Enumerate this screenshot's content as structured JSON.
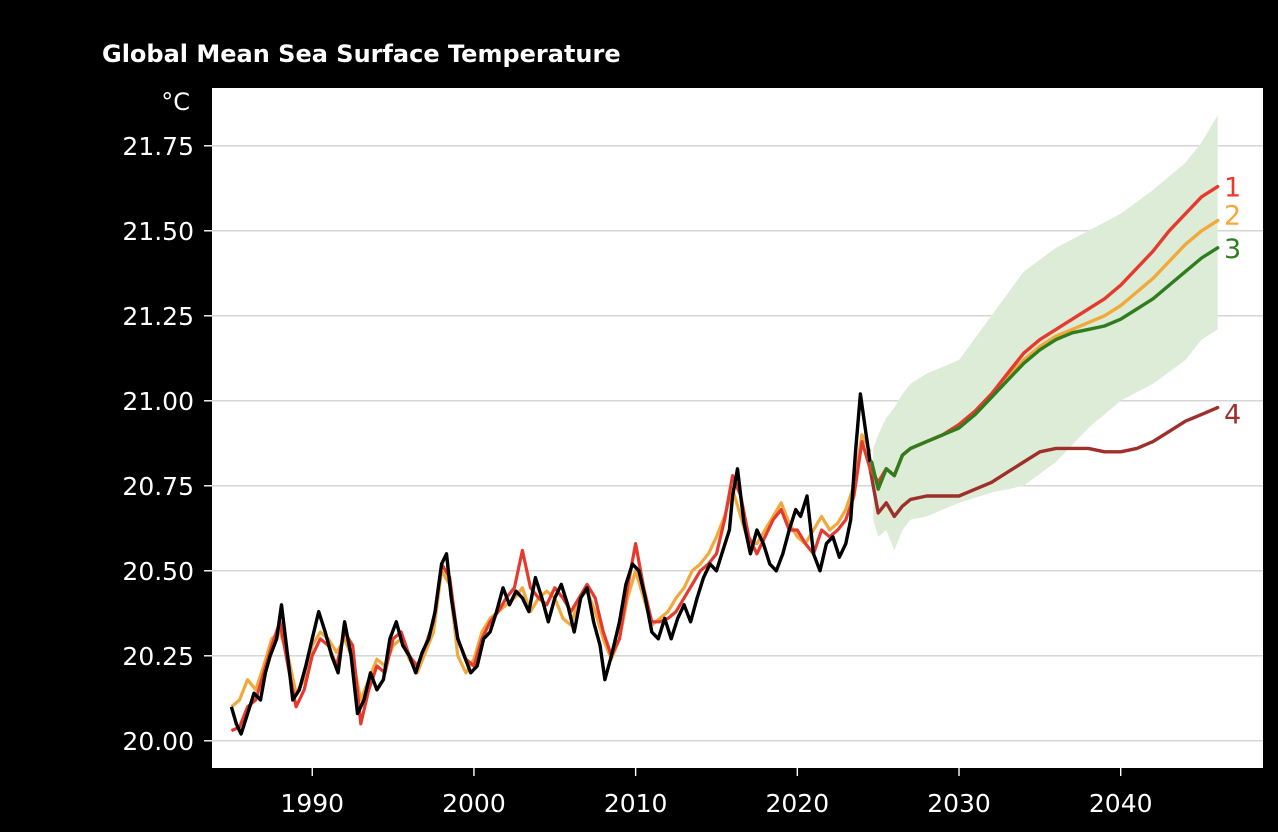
{
  "chart_data": {
    "type": "line",
    "title": "Global Mean Sea Surface Temperature",
    "ylabel": "°C",
    "xlabel": "",
    "xlim": [
      1983.8,
      2048.8
    ],
    "ylim": [
      19.92,
      21.92
    ],
    "grid": "horizontal",
    "legend": "end-of-line numeric labels",
    "x_ticks": [
      1990,
      2000,
      2010,
      2020,
      2030,
      2040
    ],
    "x_tick_labels": [
      "1990",
      "2000",
      "2010",
      "2020",
      "2030",
      "2040"
    ],
    "y_ticks": [
      20.0,
      20.25,
      20.5,
      20.75,
      21.0,
      21.25,
      21.5,
      21.75
    ],
    "y_tick_labels": [
      "20.00",
      "20.25",
      "20.50",
      "20.75",
      "21.00",
      "21.25",
      "21.50",
      "21.75"
    ],
    "colors": {
      "background": "#000000",
      "plot_area": "#ffffff",
      "grid": "#c8c8c8",
      "band": "#dcecd7",
      "observed": "#000000",
      "series_1": "#e63a2e",
      "series_2": "#f2a93b",
      "series_3": "#2f7d1f",
      "series_4": "#9e2f2a"
    },
    "band": {
      "x": [
        2024.7,
        2025.0,
        2025.5,
        2026.0,
        2026.5,
        2027,
        2028,
        2030,
        2032,
        2034,
        2036,
        2038,
        2040,
        2042,
        2044,
        2045,
        2046
      ],
      "upper": [
        20.86,
        20.9,
        20.95,
        20.98,
        21.02,
        21.05,
        21.08,
        21.12,
        21.25,
        21.38,
        21.45,
        21.5,
        21.55,
        21.62,
        21.7,
        21.76,
        21.84
      ],
      "lower": [
        20.65,
        20.6,
        20.62,
        20.56,
        20.62,
        20.65,
        20.66,
        20.7,
        20.73,
        20.75,
        20.82,
        20.92,
        21.0,
        21.05,
        21.12,
        21.18,
        21.21
      ]
    },
    "observed": {
      "name": "",
      "x": [
        1985.0,
        1985.3,
        1985.6,
        1986.0,
        1986.4,
        1986.8,
        1987.1,
        1987.4,
        1987.8,
        1988.1,
        1988.4,
        1988.8,
        1989.2,
        1989.6,
        1990.0,
        1990.4,
        1990.8,
        1991.2,
        1991.6,
        1992.0,
        1992.4,
        1992.8,
        1993.2,
        1993.6,
        1994.0,
        1994.4,
        1994.8,
        1995.2,
        1995.6,
        1996.0,
        1996.4,
        1996.8,
        1997.2,
        1997.6,
        1998.0,
        1998.3,
        1998.6,
        1999.0,
        1999.4,
        1999.8,
        2000.2,
        2000.6,
        2001.0,
        2001.4,
        2001.8,
        2002.2,
        2002.6,
        2003.0,
        2003.4,
        2003.8,
        2004.2,
        2004.6,
        2005.0,
        2005.4,
        2005.8,
        2006.2,
        2006.6,
        2007.0,
        2007.4,
        2007.8,
        2008.1,
        2008.5,
        2009.0,
        2009.4,
        2009.8,
        2010.2,
        2010.6,
        2011.0,
        2011.4,
        2011.8,
        2012.2,
        2012.6,
        2013.0,
        2013.4,
        2013.8,
        2014.2,
        2014.6,
        2015.0,
        2015.4,
        2015.8,
        2016.0,
        2016.3,
        2016.7,
        2017.1,
        2017.5,
        2017.9,
        2018.3,
        2018.7,
        2019.1,
        2019.5,
        2019.9,
        2020.2,
        2020.6,
        2021.0,
        2021.4,
        2021.8,
        2022.2,
        2022.6,
        2023.0,
        2023.3,
        2023.6,
        2023.9,
        2024.2,
        2024.5
      ],
      "y": [
        20.1,
        20.05,
        20.02,
        20.08,
        20.14,
        20.12,
        20.2,
        20.25,
        20.3,
        20.4,
        20.28,
        20.12,
        20.15,
        20.22,
        20.3,
        20.38,
        20.32,
        20.25,
        20.2,
        20.35,
        20.25,
        20.08,
        20.12,
        20.2,
        20.15,
        20.18,
        20.3,
        20.35,
        20.28,
        20.25,
        20.2,
        20.26,
        20.3,
        20.38,
        20.52,
        20.55,
        20.42,
        20.3,
        20.25,
        20.2,
        20.22,
        20.3,
        20.32,
        20.38,
        20.45,
        20.4,
        20.44,
        20.42,
        20.38,
        20.48,
        20.42,
        20.35,
        20.42,
        20.46,
        20.4,
        20.32,
        20.42,
        20.45,
        20.35,
        20.28,
        20.18,
        20.25,
        20.35,
        20.46,
        20.52,
        20.5,
        20.42,
        20.32,
        20.3,
        20.36,
        20.3,
        20.36,
        20.4,
        20.35,
        20.42,
        20.48,
        20.52,
        20.5,
        20.56,
        20.62,
        20.72,
        20.8,
        20.64,
        20.55,
        20.62,
        20.58,
        20.52,
        20.5,
        20.55,
        20.62,
        20.68,
        20.66,
        20.72,
        20.55,
        20.5,
        20.58,
        20.6,
        20.54,
        20.58,
        20.65,
        20.85,
        21.02,
        20.92,
        20.82
      ]
    },
    "series": [
      {
        "name": "1",
        "hindcast_x": [
          1985.0,
          1985.5,
          1986.0,
          1986.5,
          1987.0,
          1987.5,
          1988.0,
          1988.5,
          1989.0,
          1989.5,
          1990.0,
          1990.5,
          1991.0,
          1991.5,
          1992.0,
          1992.5,
          1993.0,
          1993.5,
          1994.0,
          1994.5,
          1995.0,
          1995.5,
          1996.0,
          1996.5,
          1997.0,
          1997.5,
          1998.0,
          1998.5,
          1999.0,
          1999.5,
          2000.0,
          2000.5,
          2001.0,
          2001.5,
          2002.0,
          2002.5,
          2003.0,
          2003.5,
          2004.0,
          2004.5,
          2005.0,
          2005.5,
          2006.0,
          2006.5,
          2007.0,
          2007.5,
          2008.0,
          2008.5,
          2009.0,
          2009.5,
          2010.0,
          2010.5,
          2011.0,
          2011.5,
          2012.0,
          2012.5,
          2013.0,
          2013.5,
          2014.0,
          2014.5,
          2015.0,
          2015.5,
          2016.0,
          2016.5,
          2017.0,
          2017.5,
          2018.0,
          2018.5,
          2019.0,
          2019.5,
          2020.0,
          2020.5,
          2021.0,
          2021.5,
          2022.0,
          2022.5,
          2023.0,
          2023.5,
          2024.0,
          2024.5
        ],
        "hindcast_y": [
          20.03,
          20.04,
          20.1,
          20.12,
          20.2,
          20.28,
          20.35,
          20.22,
          20.1,
          20.15,
          20.25,
          20.3,
          20.28,
          20.22,
          20.32,
          20.28,
          20.05,
          20.15,
          20.22,
          20.2,
          20.3,
          20.32,
          20.25,
          20.22,
          20.28,
          20.35,
          20.52,
          20.48,
          20.3,
          20.24,
          20.22,
          20.3,
          20.35,
          20.38,
          20.42,
          20.45,
          20.56,
          20.45,
          20.42,
          20.4,
          20.45,
          20.42,
          20.38,
          20.42,
          20.46,
          20.42,
          20.32,
          20.25,
          20.3,
          20.45,
          20.58,
          20.45,
          20.35,
          20.35,
          20.36,
          20.38,
          20.42,
          20.46,
          20.5,
          20.52,
          20.55,
          20.65,
          20.78,
          20.72,
          20.6,
          20.55,
          20.6,
          20.65,
          20.68,
          20.62,
          20.62,
          20.58,
          20.55,
          20.62,
          20.6,
          20.62,
          20.65,
          20.72,
          20.88,
          20.8
        ],
        "x": [
          2024.5,
          2025.0,
          2025.5,
          2026.0,
          2026.5,
          2027,
          2028,
          2029,
          2030,
          2031,
          2032,
          2033,
          2034,
          2035,
          2036,
          2037,
          2038,
          2039,
          2040,
          2041,
          2042,
          2043,
          2044,
          2045,
          2046
        ],
        "y": [
          20.8,
          20.76,
          20.8,
          20.78,
          20.84,
          20.86,
          20.88,
          20.9,
          20.93,
          20.97,
          21.02,
          21.08,
          21.14,
          21.18,
          21.21,
          21.24,
          21.27,
          21.3,
          21.34,
          21.39,
          21.44,
          21.5,
          21.55,
          21.6,
          21.63
        ]
      },
      {
        "name": "2",
        "hindcast_x": [
          1985.0,
          1985.5,
          1986.0,
          1986.5,
          1987.0,
          1987.5,
          1988.0,
          1988.5,
          1989.0,
          1989.5,
          1990.0,
          1990.5,
          1991.0,
          1991.5,
          1992.0,
          1992.5,
          1993.0,
          1993.5,
          1994.0,
          1994.5,
          1995.0,
          1995.5,
          1996.0,
          1996.5,
          1997.0,
          1997.5,
          1998.0,
          1998.5,
          1999.0,
          1999.5,
          2000.0,
          2000.5,
          2001.0,
          2001.5,
          2002.0,
          2002.5,
          2003.0,
          2003.5,
          2004.0,
          2004.5,
          2005.0,
          2005.5,
          2006.0,
          2006.5,
          2007.0,
          2007.5,
          2008.0,
          2008.5,
          2009.0,
          2009.5,
          2010.0,
          2010.5,
          2011.0,
          2011.5,
          2012.0,
          2012.5,
          2013.0,
          2013.5,
          2014.0,
          2014.5,
          2015.0,
          2015.5,
          2016.0,
          2016.5,
          2017.0,
          2017.5,
          2018.0,
          2018.5,
          2019.0,
          2019.5,
          2020.0,
          2020.5,
          2021.0,
          2021.5,
          2022.0,
          2022.5,
          2023.0,
          2023.5,
          2024.0,
          2024.5
        ],
        "hindcast_y": [
          20.1,
          20.12,
          20.18,
          20.15,
          20.22,
          20.3,
          20.32,
          20.25,
          20.14,
          20.18,
          20.28,
          20.32,
          20.3,
          20.26,
          20.3,
          20.24,
          20.12,
          20.18,
          20.24,
          20.22,
          20.28,
          20.3,
          20.24,
          20.2,
          20.26,
          20.32,
          20.5,
          20.46,
          20.25,
          20.2,
          20.24,
          20.32,
          20.36,
          20.38,
          20.4,
          20.42,
          20.45,
          20.38,
          20.42,
          20.44,
          20.42,
          20.36,
          20.34,
          20.42,
          20.44,
          20.38,
          20.3,
          20.24,
          20.3,
          20.42,
          20.5,
          20.42,
          20.34,
          20.36,
          20.38,
          20.42,
          20.45,
          20.5,
          20.52,
          20.55,
          20.6,
          20.66,
          20.74,
          20.66,
          20.58,
          20.58,
          20.62,
          20.66,
          20.7,
          20.64,
          20.6,
          20.58,
          20.62,
          20.66,
          20.62,
          20.64,
          20.68,
          20.75,
          20.9,
          20.85
        ],
        "x": [
          2024.5,
          2025.0,
          2025.5,
          2026.0,
          2026.5,
          2027,
          2028,
          2029,
          2030,
          2031,
          2032,
          2033,
          2034,
          2035,
          2036,
          2037,
          2038,
          2039,
          2040,
          2041,
          2042,
          2043,
          2044,
          2045,
          2046
        ],
        "y": [
          20.8,
          20.76,
          20.8,
          20.78,
          20.84,
          20.86,
          20.88,
          20.9,
          20.93,
          20.97,
          21.02,
          21.07,
          21.12,
          21.16,
          21.19,
          21.21,
          21.23,
          21.25,
          21.28,
          21.32,
          21.36,
          21.41,
          21.46,
          21.5,
          21.53
        ]
      },
      {
        "name": "3",
        "x": [
          2024.6,
          2025.0,
          2025.5,
          2026.0,
          2026.5,
          2027,
          2028,
          2029,
          2030,
          2031,
          2032,
          2033,
          2034,
          2035,
          2036,
          2037,
          2038,
          2039,
          2040,
          2041,
          2042,
          2043,
          2044,
          2045,
          2046
        ],
        "y": [
          20.82,
          20.74,
          20.8,
          20.78,
          20.84,
          20.86,
          20.88,
          20.9,
          20.92,
          20.96,
          21.01,
          21.06,
          21.11,
          21.15,
          21.18,
          21.2,
          21.21,
          21.22,
          21.24,
          21.27,
          21.3,
          21.34,
          21.38,
          21.42,
          21.45
        ]
      },
      {
        "name": "4",
        "x": [
          2024.5,
          2025.0,
          2025.5,
          2026.0,
          2026.5,
          2027,
          2028,
          2029,
          2030,
          2031,
          2032,
          2033,
          2034,
          2035,
          2036,
          2037,
          2038,
          2039,
          2040,
          2041,
          2042,
          2043,
          2044,
          2045,
          2046
        ],
        "y": [
          20.8,
          20.67,
          20.7,
          20.66,
          20.69,
          20.71,
          20.72,
          20.72,
          20.72,
          20.74,
          20.76,
          20.79,
          20.82,
          20.85,
          20.86,
          20.86,
          20.86,
          20.85,
          20.85,
          20.86,
          20.88,
          20.91,
          20.94,
          20.96,
          20.98
        ]
      }
    ]
  }
}
